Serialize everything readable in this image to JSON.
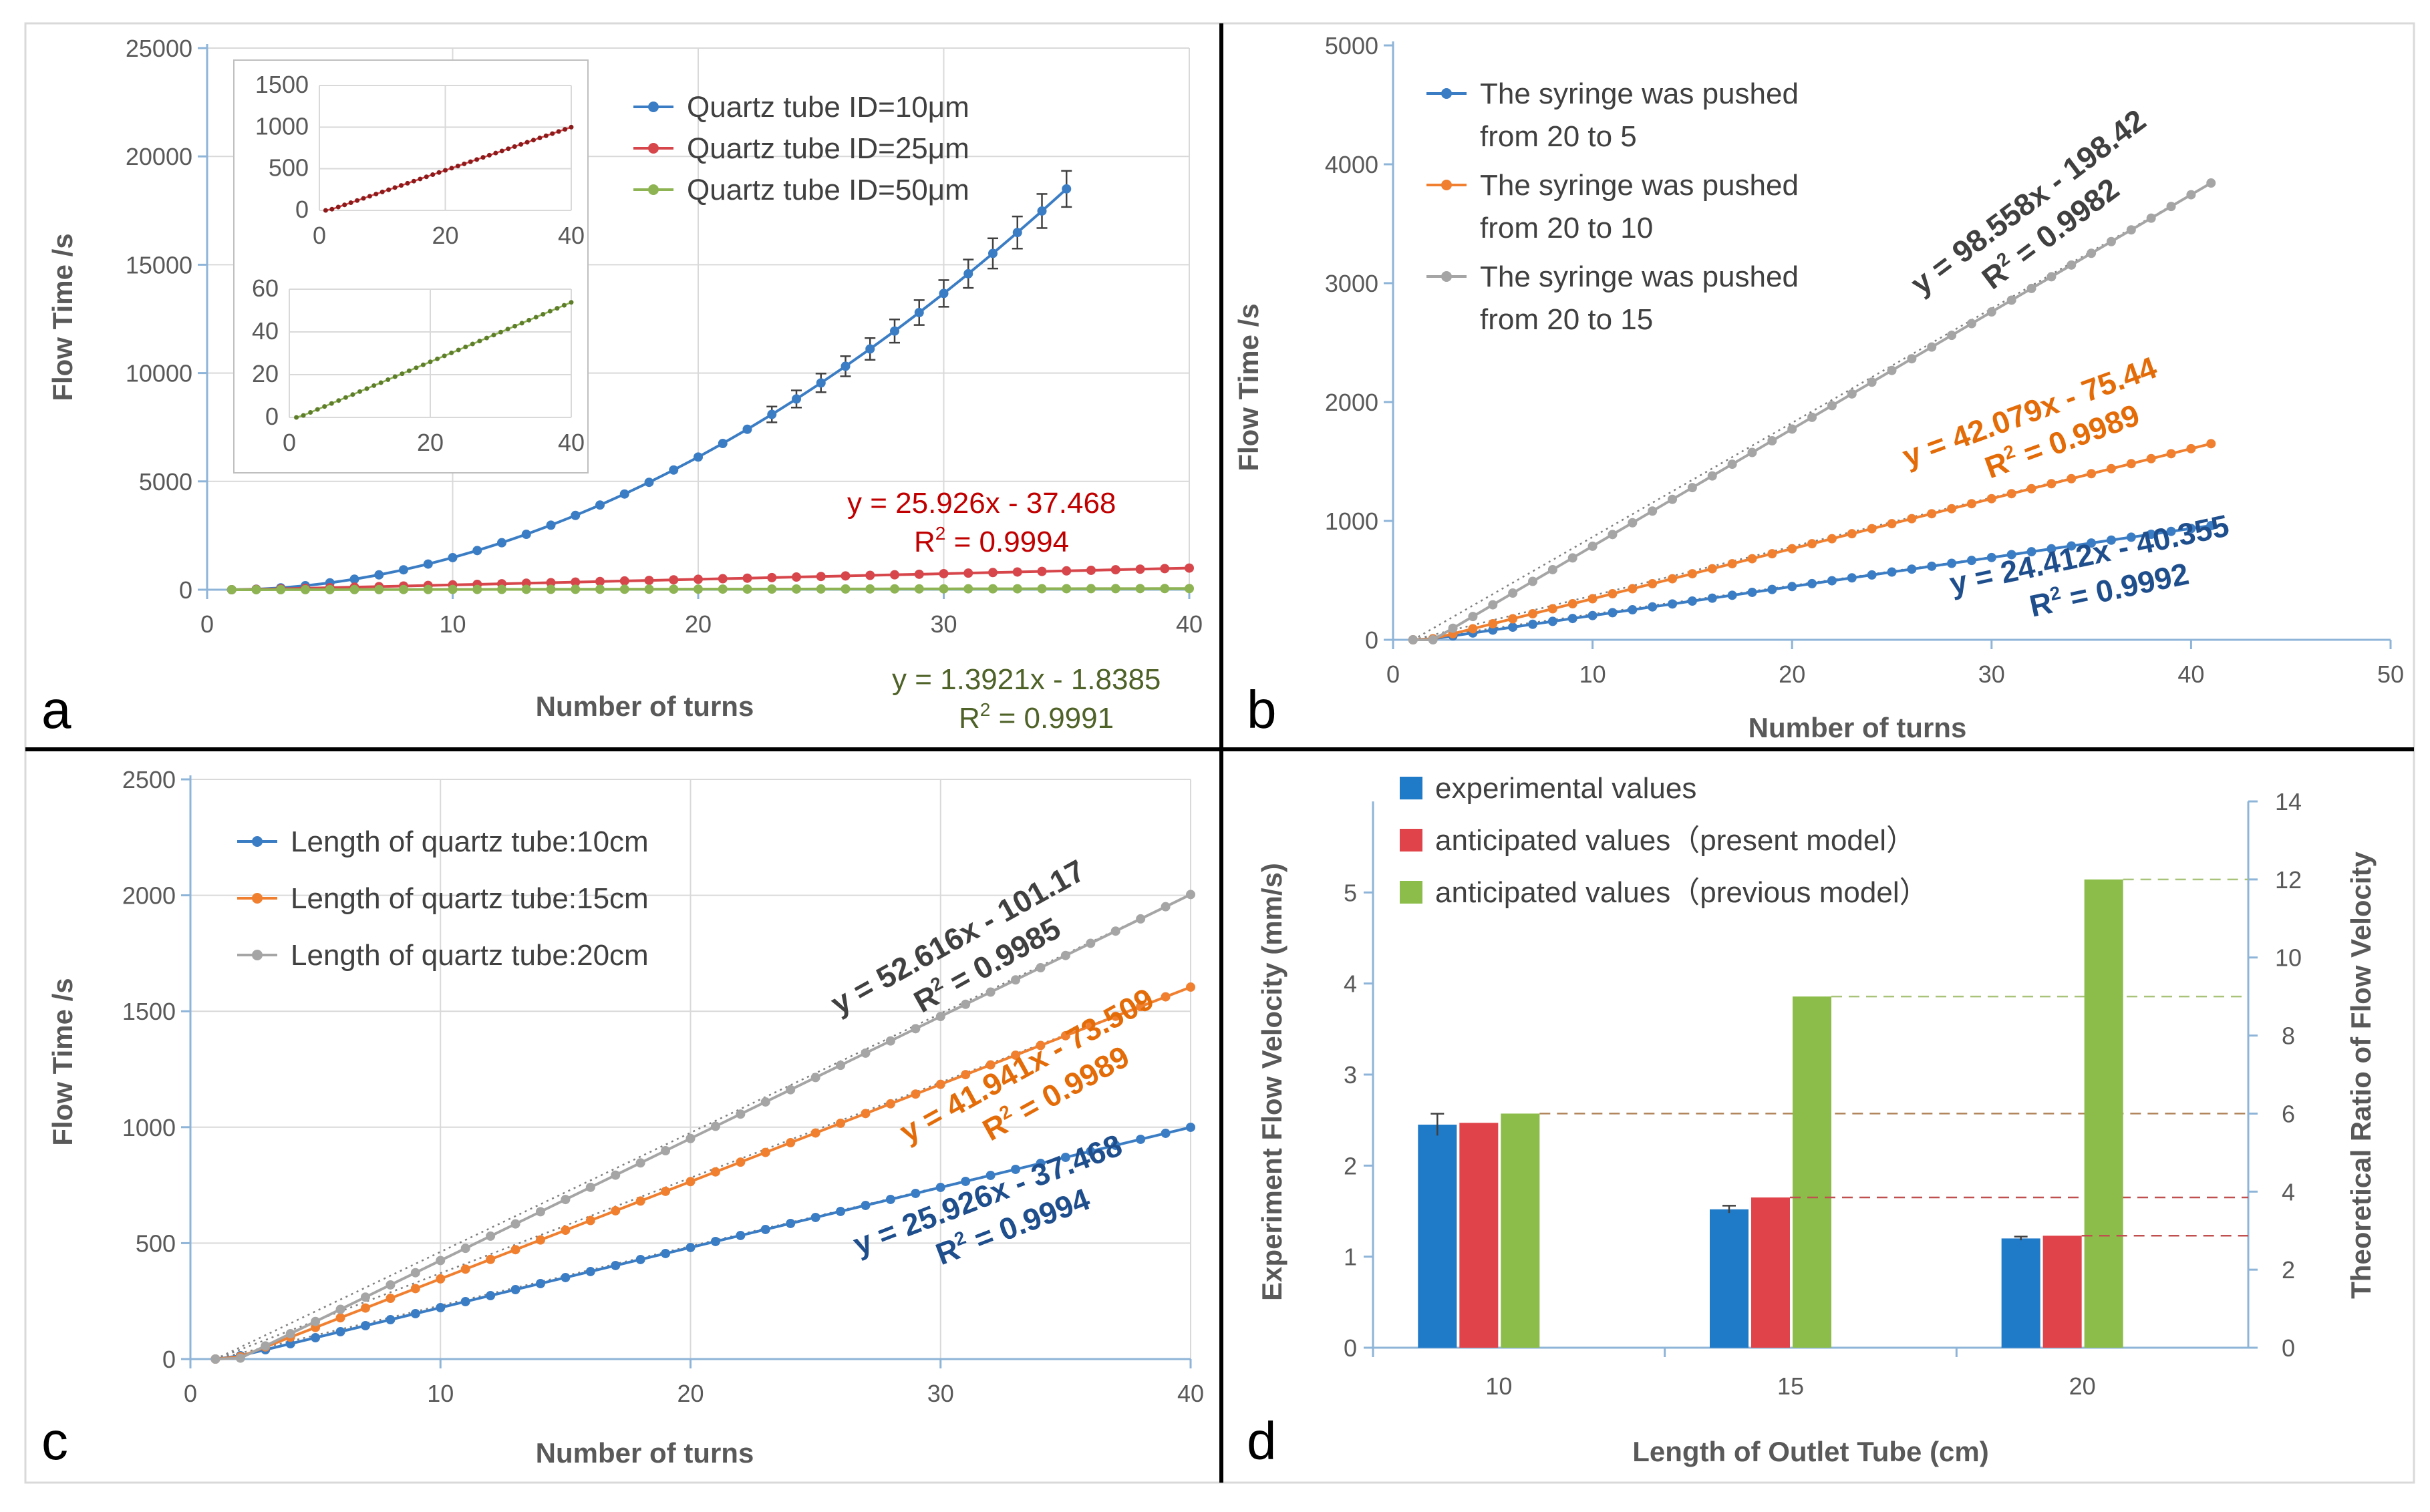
{
  "figure": {
    "colors": {
      "blue": "#3B7DC4",
      "red": "#D6464B",
      "green": "#8DB352",
      "orange": "#F08030",
      "gray": "#A5A5A5",
      "bar_blue": "#1F7AC8",
      "bar_red": "#E0444A",
      "bar_green": "#8CBD4A",
      "eq_red": "#C00000",
      "eq_green": "#4F6228",
      "eq_darkgray": "#404040",
      "eq_orange": "#E36C09",
      "eq_blue": "#1F4E8C"
    }
  },
  "chart_data": [
    {
      "panel": "a",
      "type": "line",
      "title": "",
      "xlabel": "Number of turns",
      "ylabel": "Flow Time /s",
      "xlim": [
        0,
        40
      ],
      "ylim": [
        0,
        25000
      ],
      "xticks": [
        0,
        10,
        20,
        30,
        40
      ],
      "yticks": [
        0,
        5000,
        10000,
        15000,
        20000,
        25000
      ],
      "legend_position": "top-center",
      "series": [
        {
          "name": "Quartz tube ID=10μm",
          "color_key": "blue",
          "model": "quadratic",
          "x_start": 1,
          "x_end": 35,
          "y_start": 0,
          "y_end": 18500,
          "curvature": 1.9,
          "error_bars": true
        },
        {
          "name": "Quartz tube ID=25μm",
          "color_key": "red",
          "model": "linear",
          "x_start": 1,
          "x_end": 40,
          "slope": 25.926,
          "intercept": -37.468
        },
        {
          "name": "Quartz tube ID=50μm",
          "color_key": "green",
          "model": "linear",
          "x_start": 1,
          "x_end": 40,
          "slope": 1.3921,
          "intercept": -1.8385
        }
      ],
      "annotations": [
        {
          "eq": "y = 25.926x - 37.468",
          "r2_prefix": "R",
          "r2_value": " = 0.9994",
          "color_key": "eq_red"
        },
        {
          "eq": "y = 1.3921x - 1.8385",
          "r2_prefix": "R",
          "r2_value": " = 0.9991",
          "color_key": "eq_green"
        }
      ],
      "insets": [
        {
          "series_index": 1,
          "xlim": [
            0,
            40
          ],
          "ylim": [
            0,
            1500
          ],
          "xticks": [
            0,
            20,
            40
          ],
          "yticks": [
            0,
            500,
            1000,
            1500
          ]
        },
        {
          "series_index": 2,
          "xlim": [
            0,
            40
          ],
          "ylim": [
            0,
            60
          ],
          "xticks": [
            0,
            20,
            40
          ],
          "yticks": [
            0,
            20,
            40,
            60
          ]
        }
      ]
    },
    {
      "panel": "b",
      "type": "line",
      "title": "",
      "xlabel": "Number of turns",
      "ylabel": "Flow  Time /s",
      "xlim": [
        0,
        50
      ],
      "ylim": [
        0,
        5000
      ],
      "xticks": [
        0,
        10,
        20,
        30,
        40,
        50
      ],
      "yticks": [
        0,
        1000,
        2000,
        3000,
        4000,
        5000
      ],
      "legend_position": "top-left",
      "series": [
        {
          "name": "The syringe was pushed",
          "name2": "from 20 to 5",
          "color_key": "blue",
          "model": "linear",
          "x_start": 1,
          "x_end": 41,
          "slope": 24.412,
          "intercept": -40.355
        },
        {
          "name": "The syringe was pushed",
          "name2": "from 20 to 10",
          "color_key": "orange",
          "model": "linear",
          "x_start": 1,
          "x_end": 41,
          "slope": 42.079,
          "intercept": -75.44
        },
        {
          "name": "The syringe was pushed",
          "name2": "from 20 to 15",
          "color_key": "gray",
          "model": "linear",
          "x_start": 1,
          "x_end": 41,
          "slope": 98.558,
          "intercept": -198.42
        }
      ],
      "annotations": [
        {
          "eq": "y = 98.558x - 198.42",
          "r2_prefix": "R",
          "r2_value": " = 0.9982",
          "color_key": "eq_darkgray"
        },
        {
          "eq": "y = 42.079x - 75.44",
          "r2_prefix": "R",
          "r2_value": " = 0.9989",
          "color_key": "eq_orange"
        },
        {
          "eq": "y = 24.412x - 40.355",
          "r2_prefix": "R",
          "r2_value": " = 0.9992",
          "color_key": "eq_blue"
        }
      ]
    },
    {
      "panel": "c",
      "type": "line",
      "title": "",
      "xlabel": "Number of turns",
      "ylabel": "Flow  Time /s",
      "xlim": [
        0,
        40
      ],
      "ylim": [
        0,
        2500
      ],
      "xticks": [
        0,
        10,
        20,
        30,
        40
      ],
      "yticks": [
        0,
        500,
        1000,
        1500,
        2000,
        2500
      ],
      "legend_position": "top-left",
      "series": [
        {
          "name": "Length of quartz tube:10cm",
          "color_key": "blue",
          "model": "linear",
          "x_start": 1,
          "x_end": 40,
          "slope": 25.926,
          "intercept": -37.468
        },
        {
          "name": "Length of quartz tube:15cm",
          "color_key": "orange",
          "model": "linear",
          "x_start": 1,
          "x_end": 40,
          "slope": 41.941,
          "intercept": -73.509
        },
        {
          "name": "Length of quartz tube:20cm",
          "color_key": "gray",
          "model": "linear",
          "x_start": 1,
          "x_end": 40,
          "slope": 52.616,
          "intercept": -101.17
        }
      ],
      "annotations": [
        {
          "eq": "y = 52.616x - 101.17",
          "r2_prefix": "R",
          "r2_value": " = 0.9985",
          "color_key": "eq_darkgray"
        },
        {
          "eq": "y = 41.941x - 73.509",
          "r2_prefix": "R",
          "r2_value": " = 0.9989",
          "color_key": "eq_orange"
        },
        {
          "eq": "y = 25.926x - 37.468",
          "r2_prefix": "R",
          "r2_value": " = 0.9994",
          "color_key": "eq_blue"
        }
      ]
    },
    {
      "panel": "d",
      "type": "bar",
      "title": "",
      "xlabel": "Length of Outlet Tube  (cm)",
      "ylabel": "Experiment Flow Velocity  (mm/s)",
      "y2label": "Theoretical Ratio of Flow Velocity",
      "categories": [
        "10",
        "15",
        "20"
      ],
      "ylim": [
        0,
        6
      ],
      "yticks": [
        0,
        1,
        2,
        3,
        4,
        5
      ],
      "y2lim": [
        0,
        14
      ],
      "y2ticks": [
        0,
        2,
        4,
        6,
        8,
        10,
        12,
        14
      ],
      "legend_position": "top-left",
      "series": [
        {
          "name": "experimental values",
          "color_key": "bar_blue",
          "axis": "left",
          "values": [
            2.45,
            1.52,
            1.2
          ],
          "errors": [
            0.12,
            0.04,
            0.02
          ]
        },
        {
          "name": "anticipated values（present model）",
          "color_key": "bar_red",
          "axis": "left",
          "values": [
            2.47,
            1.65,
            1.23
          ]
        },
        {
          "name": "anticipated values（previous model）",
          "color_key": "bar_green",
          "axis": "right",
          "values": [
            6,
            9,
            12
          ]
        }
      ]
    }
  ]
}
